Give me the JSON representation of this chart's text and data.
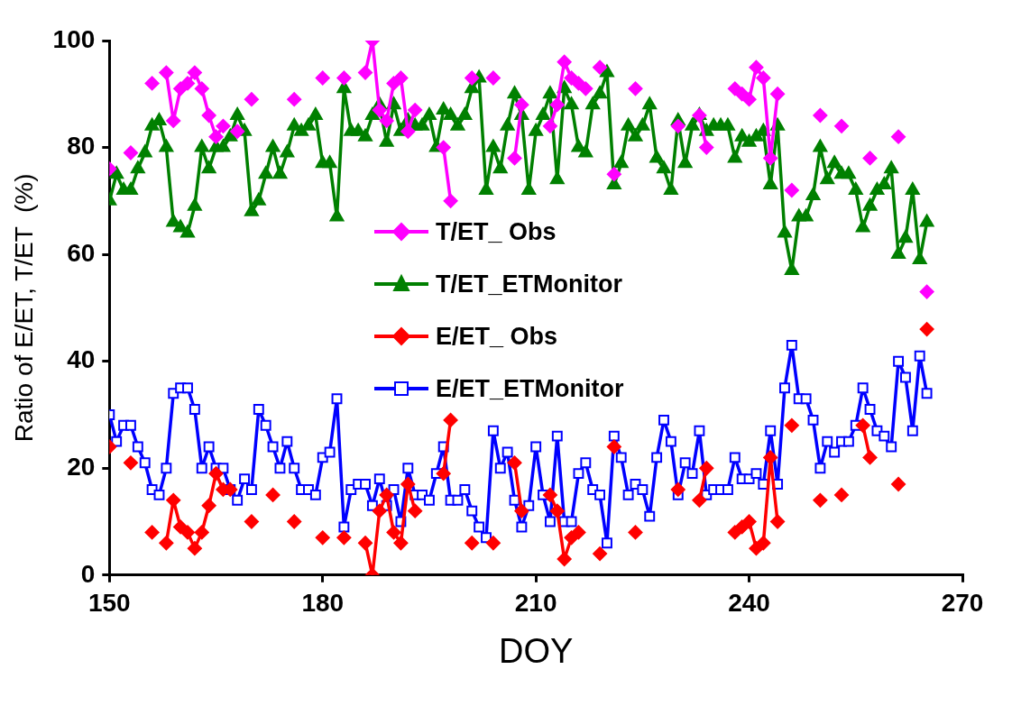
{
  "chart_data": {
    "type": "line",
    "xlabel": "DOY",
    "ylabel": "Ratio of E/ET, T/ET  (%)",
    "x": [
      150,
      151,
      152,
      153,
      154,
      155,
      156,
      157,
      158,
      159,
      160,
      161,
      162,
      163,
      164,
      165,
      166,
      167,
      168,
      169,
      170,
      171,
      172,
      173,
      174,
      175,
      176,
      177,
      178,
      179,
      180,
      181,
      182,
      183,
      184,
      185,
      186,
      187,
      188,
      189,
      190,
      191,
      192,
      193,
      194,
      195,
      196,
      197,
      198,
      199,
      200,
      201,
      202,
      203,
      204,
      205,
      206,
      207,
      208,
      209,
      210,
      211,
      212,
      213,
      214,
      215,
      216,
      217,
      218,
      219,
      220,
      221,
      222,
      223,
      224,
      225,
      226,
      227,
      228,
      229,
      230,
      231,
      232,
      233,
      234,
      235,
      236,
      237,
      238,
      239,
      240,
      241,
      242,
      243,
      244,
      245,
      246,
      247,
      248,
      249,
      250,
      251,
      252,
      253,
      254,
      255,
      256,
      257,
      258,
      259,
      260,
      261,
      262,
      263,
      264,
      265
    ],
    "xlim": [
      150,
      270
    ],
    "xticks": [
      150,
      180,
      210,
      240,
      270
    ],
    "ylim": [
      0,
      100
    ],
    "yticks": [
      0,
      20,
      40,
      60,
      80,
      100
    ],
    "grid": false,
    "legend": "center",
    "line_style": "solid",
    "series": [
      {
        "name": "T/ET_  Obs",
        "color": "#ff00ff",
        "marker": "diamond",
        "values": [
          76,
          null,
          null,
          79,
          null,
          null,
          92,
          null,
          94,
          85,
          91,
          92,
          94,
          91,
          86,
          82,
          84,
          null,
          83,
          null,
          89,
          null,
          null,
          null,
          null,
          null,
          89,
          null,
          null,
          null,
          93,
          null,
          null,
          93,
          null,
          null,
          94,
          100,
          87,
          85,
          92,
          93,
          83,
          87,
          null,
          null,
          null,
          80,
          70,
          null,
          null,
          93,
          null,
          null,
          93,
          null,
          null,
          78,
          88,
          null,
          null,
          null,
          84,
          88,
          96,
          93,
          92,
          91,
          null,
          95,
          null,
          75,
          null,
          null,
          91,
          null,
          null,
          null,
          null,
          null,
          84,
          null,
          null,
          86,
          80,
          null,
          null,
          null,
          91,
          90,
          89,
          95,
          93,
          78,
          90,
          null,
          72,
          null,
          null,
          null,
          86,
          null,
          null,
          84,
          null,
          null,
          null,
          78,
          null,
          null,
          null,
          82,
          null,
          null,
          null,
          53
        ]
      },
      {
        "name": "T/ET_ETMonitor",
        "color": "#008000",
        "marker": "triangle",
        "values": [
          70,
          75,
          72,
          72,
          76,
          79,
          84,
          85,
          80,
          66,
          65,
          64,
          69,
          80,
          76,
          80,
          80,
          82,
          86,
          83,
          68,
          70,
          75,
          80,
          75,
          79,
          84,
          83,
          84,
          86,
          77,
          77,
          67,
          91,
          83,
          83,
          82,
          86,
          88,
          81,
          88,
          83,
          85,
          84,
          84,
          86,
          80,
          87,
          86,
          84,
          86,
          91,
          93,
          72,
          80,
          76,
          84,
          90,
          86,
          72,
          83,
          86,
          90,
          74,
          91,
          88,
          80,
          79,
          88,
          90,
          94,
          73,
          77,
          84,
          82,
          84,
          88,
          78,
          76,
          72,
          85,
          77,
          84,
          86,
          83,
          84,
          84,
          84,
          78,
          82,
          81,
          82,
          83,
          73,
          84,
          64,
          57,
          67,
          67,
          71,
          80,
          74,
          77,
          75,
          75,
          72,
          65,
          69,
          72,
          73,
          76,
          60,
          63,
          72,
          59,
          66
        ]
      },
      {
        "name": "E/ET_  Obs",
        "color": "#ff0000",
        "marker": "diamond",
        "values": [
          24,
          null,
          null,
          21,
          null,
          null,
          8,
          null,
          6,
          14,
          9,
          8,
          5,
          8,
          13,
          19,
          16,
          16,
          null,
          null,
          10,
          null,
          null,
          15,
          null,
          null,
          10,
          null,
          null,
          null,
          7,
          null,
          null,
          7,
          null,
          null,
          6,
          0,
          12,
          15,
          8,
          6,
          17,
          12,
          null,
          null,
          null,
          19,
          29,
          null,
          null,
          6,
          null,
          null,
          6,
          null,
          null,
          21,
          12,
          null,
          null,
          null,
          15,
          12,
          3,
          7,
          8,
          null,
          null,
          4,
          null,
          24,
          null,
          null,
          8,
          null,
          null,
          null,
          null,
          null,
          16,
          null,
          null,
          14,
          20,
          null,
          null,
          null,
          8,
          9,
          10,
          5,
          6,
          22,
          10,
          null,
          28,
          null,
          null,
          null,
          14,
          null,
          null,
          15,
          null,
          null,
          28,
          22,
          null,
          null,
          null,
          17,
          null,
          null,
          null,
          46
        ]
      },
      {
        "name": "E/ET_ETMonitor",
        "color": "#0000ff",
        "marker": "square",
        "values": [
          30,
          25,
          28,
          28,
          24,
          21,
          16,
          15,
          20,
          34,
          35,
          35,
          31,
          20,
          24,
          20,
          20,
          16,
          14,
          18,
          16,
          31,
          28,
          24,
          20,
          25,
          20,
          16,
          16,
          15,
          22,
          23,
          33,
          9,
          16,
          17,
          17,
          13,
          18,
          13,
          16,
          10,
          20,
          15,
          15,
          14,
          19,
          24,
          14,
          14,
          16,
          12,
          9,
          7,
          27,
          20,
          23,
          14,
          9,
          13,
          24,
          15,
          10,
          26,
          10,
          10,
          19,
          21,
          16,
          15,
          6,
          26,
          22,
          15,
          17,
          16,
          11,
          22,
          29,
          25,
          15,
          21,
          19,
          27,
          15,
          16,
          16,
          16,
          22,
          18,
          18,
          19,
          17,
          27,
          17,
          35,
          43,
          33,
          33,
          29,
          20,
          25,
          23,
          25,
          25,
          28,
          35,
          31,
          27,
          26,
          24,
          40,
          37,
          27,
          41,
          34
        ]
      }
    ]
  }
}
